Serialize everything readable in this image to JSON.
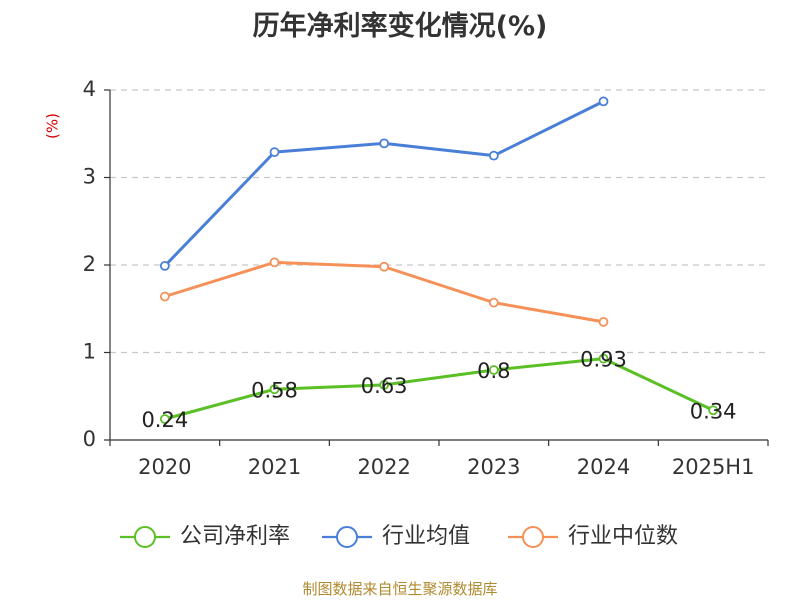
{
  "source_note": "制图数据来自恒生聚源数据库",
  "chart_data": {
    "type": "line",
    "title": "历年净利率变化情况(%)",
    "ylabel": "(%)",
    "ylabel_color": "#d40000",
    "categories": [
      "2020",
      "2021",
      "2022",
      "2023",
      "2024",
      "2025H1"
    ],
    "y_ticks": [
      "0",
      "1",
      "2",
      "3",
      "4"
    ],
    "ylim": [
      0,
      4
    ],
    "grid": true,
    "legend_position": "bottom",
    "series": [
      {
        "name": "公司净利率",
        "color": "#5bbf26",
        "values": [
          0.24,
          0.58,
          0.63,
          0.8,
          0.93,
          0.34
        ],
        "labels": [
          "0.24",
          "0.58",
          "0.63",
          "0.8",
          "0.93",
          "0.34"
        ]
      },
      {
        "name": "行业均值",
        "color": "#4a7fd8",
        "values": [
          1.99,
          3.29,
          3.39,
          3.25,
          3.87,
          null
        ]
      },
      {
        "name": "行业中位数",
        "color": "#f59158",
        "values": [
          1.64,
          2.03,
          1.98,
          1.57,
          1.35,
          null
        ]
      }
    ]
  }
}
